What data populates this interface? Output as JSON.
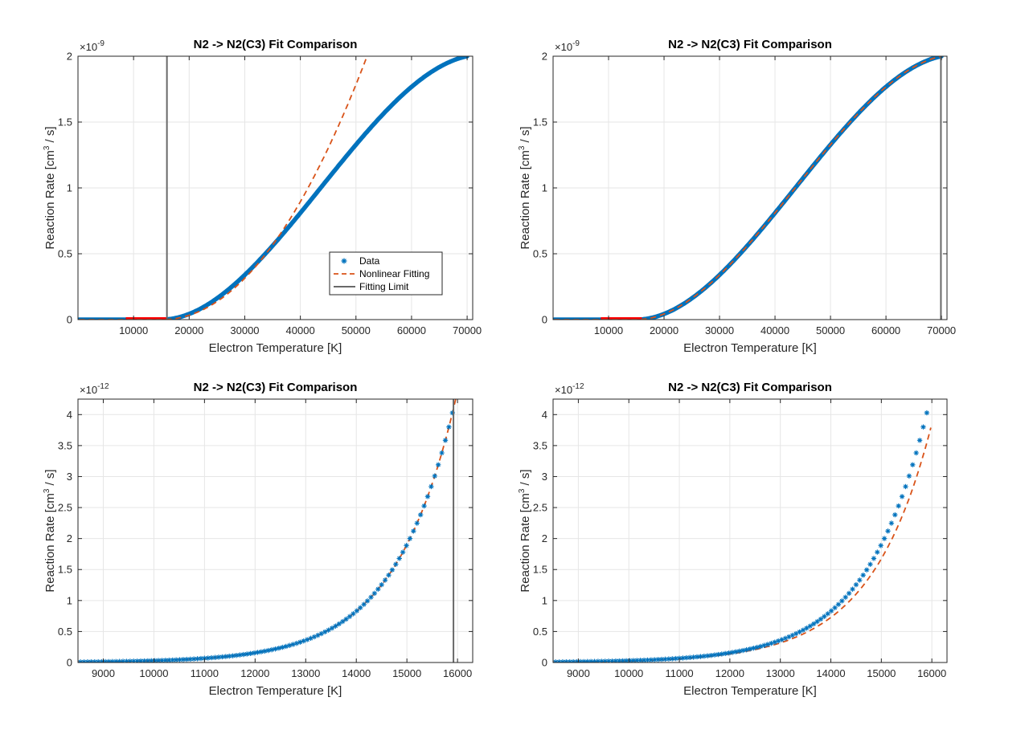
{
  "figure": {
    "legend": {
      "placement": "inside-lower-right (top-left panel)",
      "entries": [
        "Data",
        "Nonlinear Fitting",
        "Fitting Limit"
      ]
    },
    "colors": {
      "data": "#0072BD",
      "fit": "#D95319",
      "limit": "#696969",
      "highlight": "#FF0000",
      "grid": "#e6e6e6"
    }
  },
  "chart_data": [
    {
      "type": "scatter",
      "title": "N2 -> N2(C3) Fit Comparison",
      "xlabel": "Electron Temperature [K]",
      "ylabel_main": "Reaction Rate [cm",
      "ylabel_sup": "3",
      "ylabel_tail": " / s]",
      "exponent_base": "×10",
      "exponent_power": "-9",
      "xlim": [
        0,
        71000
      ],
      "ylim": [
        0,
        2
      ],
      "xticks": [
        10000,
        20000,
        30000,
        40000,
        50000,
        60000,
        70000
      ],
      "xtick_labels": [
        "10000",
        "20000",
        "30000",
        "40000",
        "50000",
        "60000",
        "70000"
      ],
      "yticks": [
        0,
        0.5,
        1,
        1.5,
        2
      ],
      "ytick_labels": [
        "0",
        "0.5",
        "1",
        "1.5",
        "2"
      ],
      "grid": true,
      "legend": true,
      "fitting_limit_x": 16000,
      "highlight_range": [
        8600,
        16000
      ],
      "fit_curve_x_max": 52000,
      "data_marker": "dense"
    },
    {
      "type": "scatter",
      "title": "N2 -> N2(C3) Fit Comparison",
      "xlabel": "Electron Temperature [K]",
      "ylabel_main": "Reaction Rate [cm",
      "ylabel_sup": "3",
      "ylabel_tail": " / s]",
      "exponent_base": "×10",
      "exponent_power": "-9",
      "xlim": [
        0,
        71000
      ],
      "ylim": [
        0,
        2
      ],
      "xticks": [
        10000,
        20000,
        30000,
        40000,
        50000,
        60000,
        70000
      ],
      "xtick_labels": [
        "10000",
        "20000",
        "30000",
        "40000",
        "50000",
        "60000",
        "70000"
      ],
      "yticks": [
        0,
        0.5,
        1,
        1.5,
        2
      ],
      "ytick_labels": [
        "0",
        "0.5",
        "1",
        "1.5",
        "2"
      ],
      "grid": true,
      "legend": false,
      "fitting_limit_x": 69900,
      "highlight_range": [
        8600,
        16000
      ],
      "fit_curve_x_max": 70000,
      "data_marker": "dense"
    },
    {
      "type": "scatter",
      "title": "N2 -> N2(C3) Fit Comparison",
      "xlabel": "Electron Temperature [K]",
      "ylabel_main": "Reaction Rate [cm",
      "ylabel_sup": "3",
      "ylabel_tail": " / s]",
      "exponent_base": "×10",
      "exponent_power": "-12",
      "xlim": [
        8500,
        16300
      ],
      "ylim": [
        0,
        4.25
      ],
      "xticks": [
        9000,
        10000,
        11000,
        12000,
        13000,
        14000,
        15000,
        16000
      ],
      "xtick_labels": [
        "9000",
        "10000",
        "11000",
        "12000",
        "13000",
        "14000",
        "15000",
        "16000"
      ],
      "yticks": [
        0,
        0.5,
        1,
        1.5,
        2,
        2.5,
        3,
        3.5,
        4
      ],
      "ytick_labels": [
        "0",
        "0.5",
        "1",
        "1.5",
        "2",
        "2.5",
        "3",
        "3.5",
        "4"
      ],
      "grid": true,
      "legend": false,
      "fitting_limit_x": 15920,
      "fit_scale": 1.0,
      "data_marker": "star"
    },
    {
      "type": "scatter",
      "title": "N2 -> N2(C3) Fit Comparison",
      "xlabel": "Electron Temperature [K]",
      "ylabel_main": "Reaction Rate [cm",
      "ylabel_sup": "3",
      "ylabel_tail": " / s]",
      "exponent_base": "×10",
      "exponent_power": "-12",
      "xlim": [
        8500,
        16300
      ],
      "ylim": [
        0,
        4.25
      ],
      "xticks": [
        9000,
        10000,
        11000,
        12000,
        13000,
        14000,
        15000,
        16000
      ],
      "xtick_labels": [
        "9000",
        "10000",
        "11000",
        "12000",
        "13000",
        "14000",
        "15000",
        "16000"
      ],
      "yticks": [
        0,
        0.5,
        1,
        1.5,
        2,
        2.5,
        3,
        3.5,
        4
      ],
      "ytick_labels": [
        "0",
        "0.5",
        "1",
        "1.5",
        "2",
        "2.5",
        "3",
        "3.5",
        "4"
      ],
      "grid": true,
      "legend": false,
      "fitting_limit_x": null,
      "fit_scale": 0.88,
      "data_marker": "star"
    }
  ]
}
